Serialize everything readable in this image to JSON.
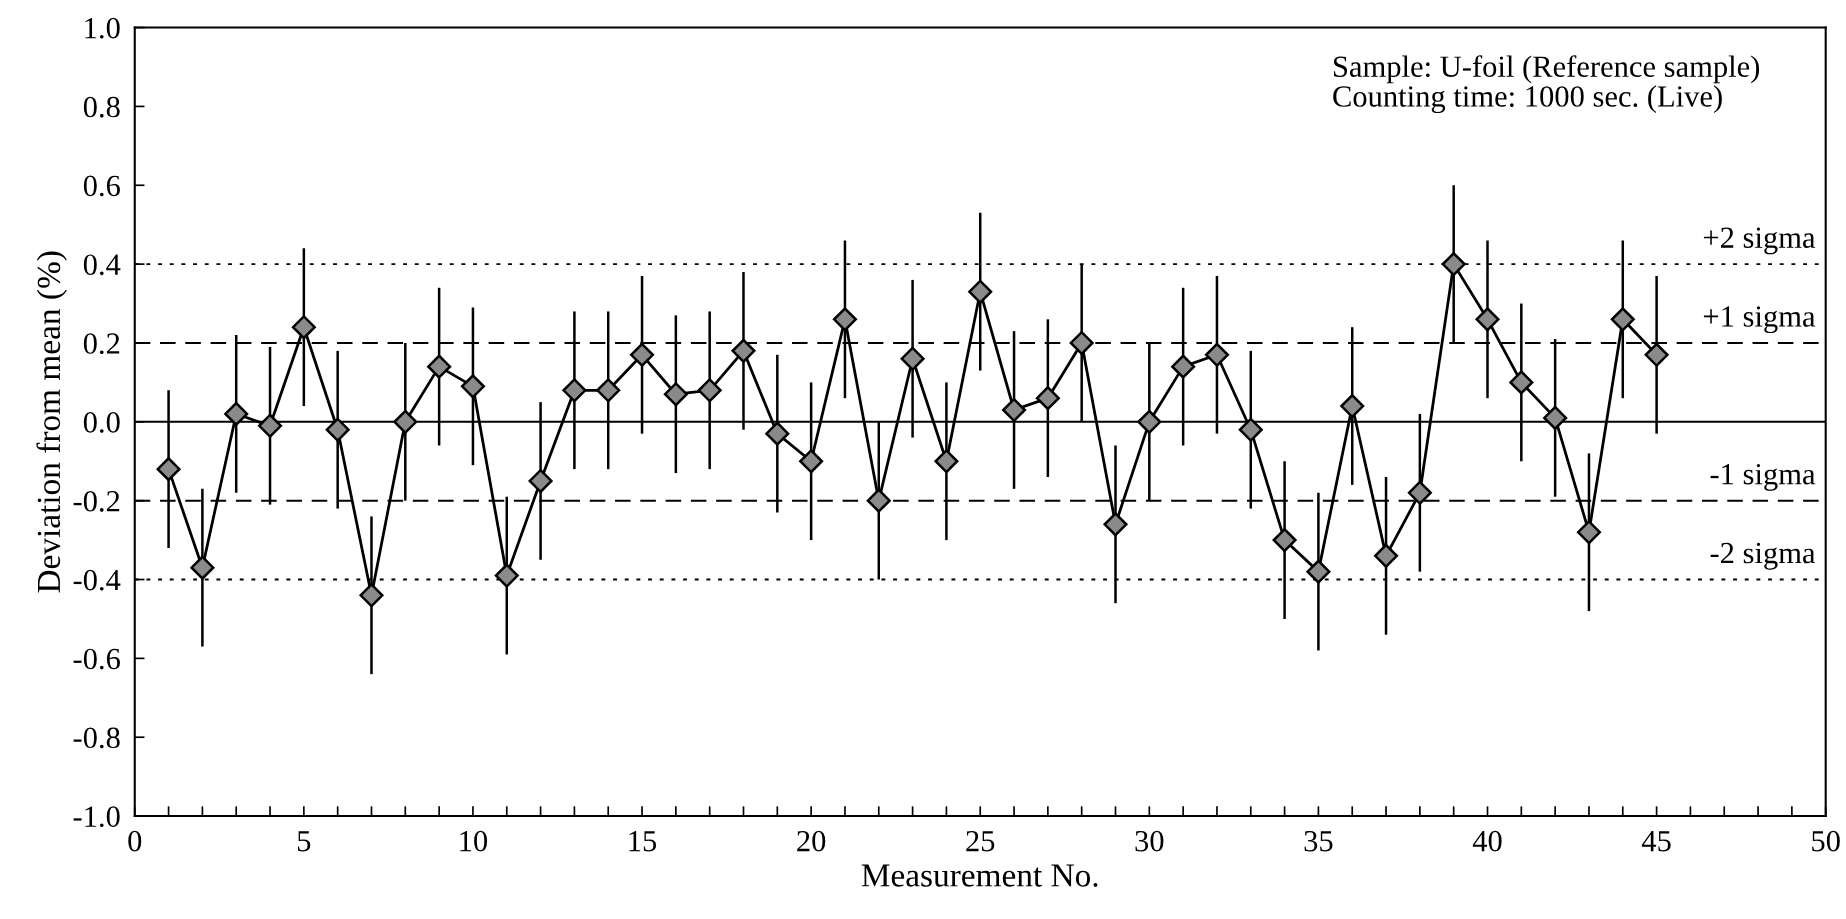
{
  "chart_data": {
    "type": "line",
    "xlabel": "Measurement No.",
    "ylabel": "Deviation from mean (%)",
    "annotations": [
      "Sample: U-foil (Reference sample)\nCounting time: 1000 sec. (Live)"
    ],
    "x": [
      1,
      2,
      3,
      4,
      5,
      6,
      7,
      8,
      9,
      10,
      11,
      12,
      13,
      14,
      15,
      16,
      17,
      18,
      19,
      20,
      21,
      22,
      23,
      24,
      25,
      26,
      27,
      28,
      29,
      30,
      31,
      32,
      33,
      34,
      35,
      36,
      37,
      38,
      39,
      40,
      41,
      42,
      43,
      44,
      45
    ],
    "series": [
      {
        "color": "#000000",
        "values": [
          -0.12,
          -0.37,
          0.02,
          -0.01,
          0.24,
          -0.02,
          -0.44,
          0.0,
          0.14,
          0.09,
          -0.39,
          -0.15,
          0.08,
          0.08,
          0.17,
          0.07,
          0.08,
          0.18,
          -0.03,
          -0.1,
          0.26,
          -0.2,
          0.16,
          -0.1,
          0.33,
          0.03,
          0.06,
          0.2,
          -0.26,
          0.0,
          0.14,
          0.17,
          -0.02,
          -0.3,
          -0.38,
          0.04,
          -0.34,
          -0.18,
          0.4,
          0.26,
          0.1,
          0.01,
          -0.28,
          0.26,
          0.17
        ],
        "errors": [
          0.2,
          0.2,
          0.2,
          0.2,
          0.2,
          0.2,
          0.2,
          0.2,
          0.2,
          0.2,
          0.2,
          0.2,
          0.2,
          0.2,
          0.2,
          0.2,
          0.2,
          0.2,
          0.2,
          0.2,
          0.2,
          0.2,
          0.2,
          0.2,
          0.2,
          0.2,
          0.2,
          0.2,
          0.2,
          0.2,
          0.2,
          0.2,
          0.2,
          0.2,
          0.2,
          0.2,
          0.2,
          0.2,
          0.2,
          0.2,
          0.2,
          0.2,
          0.2,
          0.2,
          0.2
        ]
      }
    ],
    "marker": "diamond",
    "line_style": "solid",
    "xlim": [
      0,
      50
    ],
    "xticks": [
      0,
      {
        "value": 1,
        "label": null
      },
      {
        "value": 2,
        "label": null
      },
      {
        "value": 3,
        "label": null
      },
      {
        "value": 4,
        "label": null
      },
      5,
      {
        "value": 6,
        "label": null
      },
      {
        "value": 7,
        "label": null
      },
      {
        "value": 8,
        "label": null
      },
      {
        "value": 9,
        "label": null
      },
      10,
      {
        "value": 11,
        "label": null
      },
      {
        "value": 12,
        "label": null
      },
      {
        "value": 13,
        "label": null
      },
      {
        "value": 14,
        "label": null
      },
      15,
      {
        "value": 16,
        "label": null
      },
      {
        "value": 17,
        "label": null
      },
      {
        "value": 18,
        "label": null
      },
      {
        "value": 19,
        "label": null
      },
      20,
      {
        "value": 21,
        "label": null
      },
      {
        "value": 22,
        "label": null
      },
      {
        "value": 23,
        "label": null
      },
      {
        "value": 24,
        "label": null
      },
      25,
      {
        "value": 26,
        "label": null
      },
      {
        "value": 27,
        "label": null
      },
      {
        "value": 28,
        "label": null
      },
      {
        "value": 29,
        "label": null
      },
      30,
      {
        "value": 31,
        "label": null
      },
      {
        "value": 32,
        "label": null
      },
      {
        "value": 33,
        "label": null
      },
      {
        "value": 34,
        "label": null
      },
      35,
      {
        "value": 36,
        "label": null
      },
      {
        "value": 37,
        "label": null
      },
      {
        "value": 38,
        "label": null
      },
      {
        "value": 39,
        "label": null
      },
      40,
      {
        "value": 41,
        "label": null
      },
      {
        "value": 42,
        "label": null
      },
      {
        "value": 43,
        "label": null
      },
      {
        "value": 44,
        "label": null
      },
      45,
      {
        "value": 46,
        "label": null
      },
      {
        "value": 47,
        "label": null
      },
      {
        "value": 48,
        "label": null
      },
      {
        "value": 49,
        "label": null
      },
      50
    ],
    "ylim": [
      -1.0,
      1.0
    ],
    "yticks": [
      {
        "value": -1.0,
        "label": "-1.0"
      },
      {
        "value": -0.8,
        "label": "-0.8"
      },
      {
        "value": -0.6,
        "label": "-0.6"
      },
      {
        "value": -0.4,
        "label": "-0.4"
      },
      {
        "value": -0.2,
        "label": "-0.2"
      },
      {
        "value": 0.0,
        "label": "0.0"
      },
      {
        "value": 0.2,
        "label": "0.2"
      },
      {
        "value": 0.4,
        "label": "0.4"
      },
      {
        "value": 0.6,
        "label": "0.6"
      },
      {
        "value": 0.8,
        "label": "0.8"
      },
      {
        "value": 1.0,
        "label": "1.0"
      }
    ],
    "ref_lines": [
      {
        "axis": "y",
        "value": 0.4,
        "label": "+2 sigma",
        "line_style": "dotted",
        "color": "#000000"
      },
      {
        "axis": "y",
        "value": 0.2,
        "label": "+1 sigma",
        "line_style": "dashed",
        "color": "#000000"
      },
      {
        "axis": "y",
        "value": 0,
        "label": null,
        "line_style": "solid",
        "color": "#000000"
      },
      {
        "axis": "y",
        "value": -0.2,
        "label": "-1 sigma",
        "line_style": "dashed",
        "color": "#000000"
      },
      {
        "axis": "y",
        "value": -0.4,
        "label": "-2 sigma",
        "line_style": "dotted",
        "color": "#000000"
      }
    ]
  }
}
